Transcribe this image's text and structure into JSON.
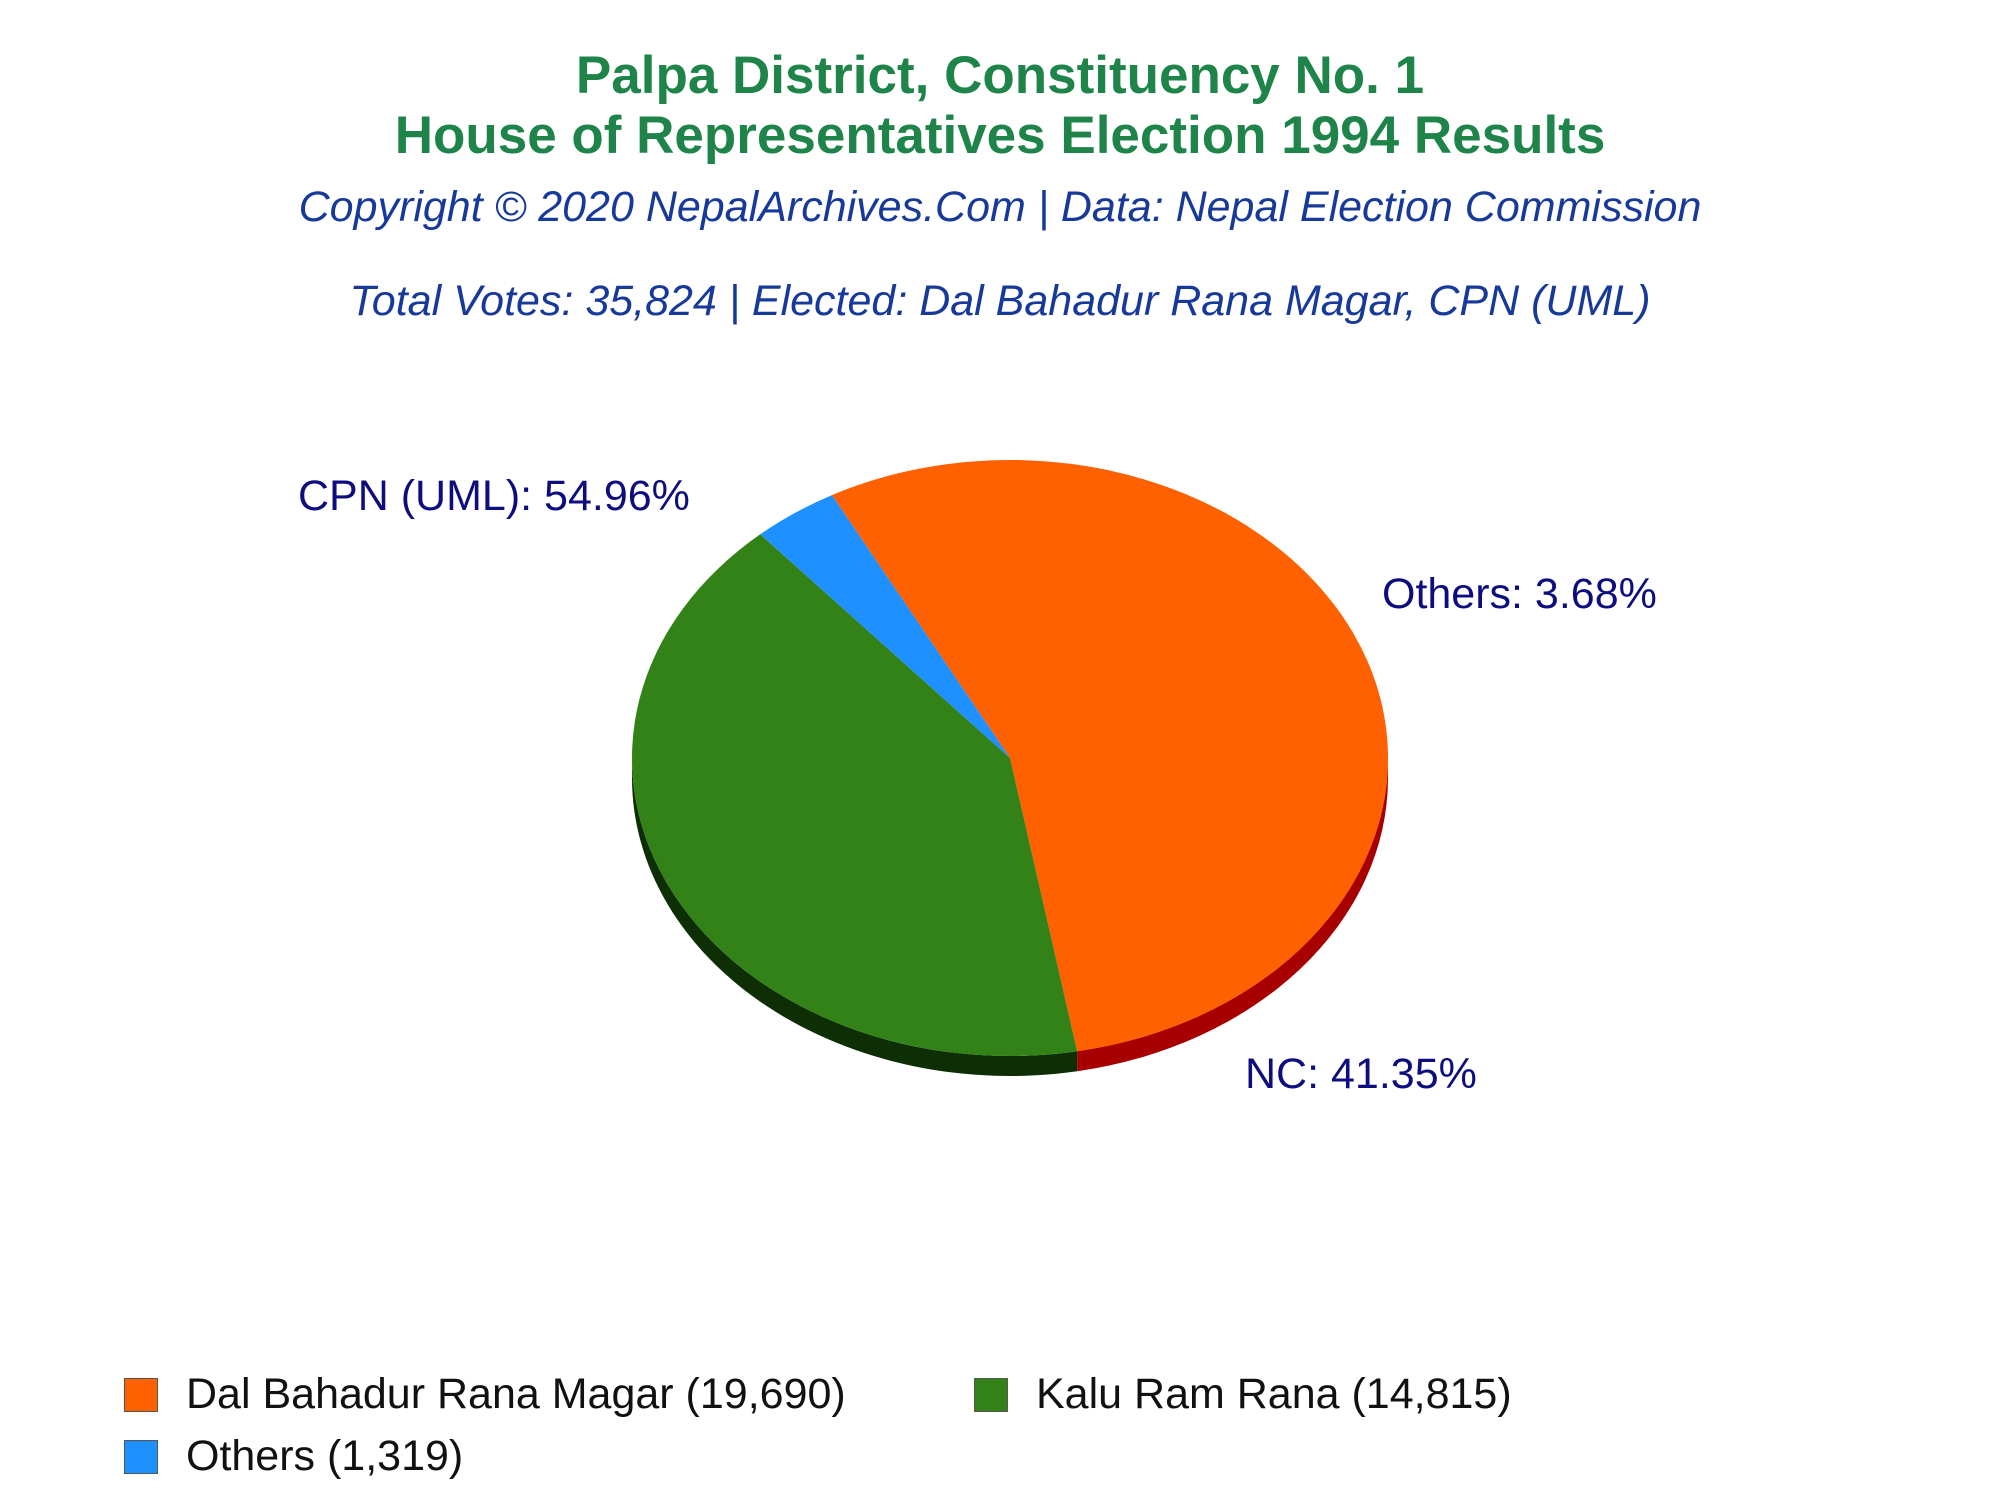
{
  "chart_data": {
    "type": "pie",
    "title": "Palpa District, Constituency No. 1",
    "subtitle": "House of Representatives Election 1994 Results",
    "copyright": "Copyright © 2020 NepalArchives.Com | Data: Nepal Election Commission",
    "summary": "Total Votes: 35,824 | Elected: Dal Bahadur Rana Magar, CPN (UML)",
    "slices": [
      {
        "label": "CPN (UML): 54.96%",
        "legend": "Dal Bahadur Rana Magar (19,690)",
        "value": 19690,
        "percent": 54.96,
        "color": "#ff6000",
        "side_color": "#a80000"
      },
      {
        "label": "NC: 41.35%",
        "legend": "Kalu Ram Rana (14,815)",
        "value": 14815,
        "percent": 41.35,
        "color": "#338218",
        "side_color": "#0e2e05"
      },
      {
        "label": "Others: 3.68%",
        "legend": "Others (1,319)",
        "value": 1319,
        "percent": 3.68,
        "color": "#1e90ff",
        "side_color": "#0c4a8c"
      }
    ],
    "legend_position": "bottom-left"
  }
}
